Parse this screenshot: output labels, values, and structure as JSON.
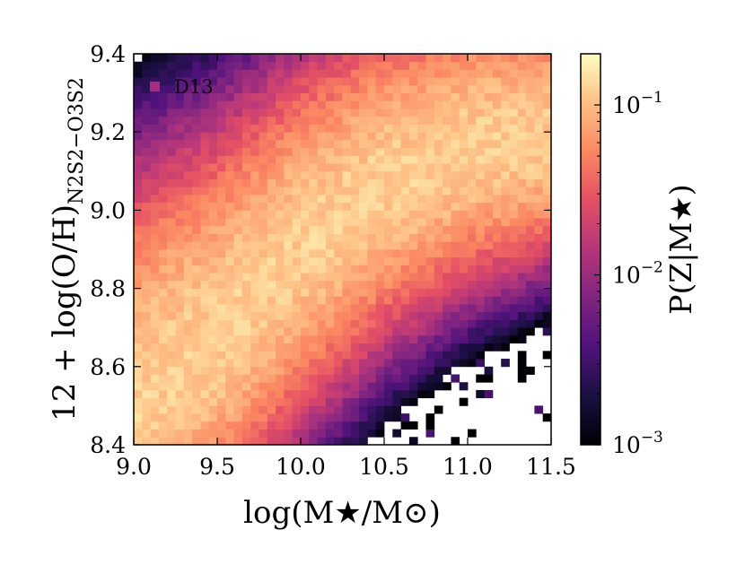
{
  "chart_data": {
    "type": "heatmap",
    "title": "",
    "panel_label": "D13",
    "xlabel": "log(M★/M⊙)",
    "ylabel": "12 + log(O/H)",
    "ylabel_subscript": "N2S2−O3S2",
    "colorbar_label": "P(Z|M★)",
    "x_range": [
      9.0,
      11.5
    ],
    "y_range": [
      8.4,
      9.4
    ],
    "x_ticks": [
      "9.0",
      "9.5",
      "10.0",
      "10.5",
      "11.0",
      "11.5"
    ],
    "y_ticks": [
      "8.4",
      "8.6",
      "8.8",
      "9.0",
      "9.2",
      "9.4"
    ],
    "colorbar": {
      "scale": "log",
      "range": [
        0.001,
        0.2
      ],
      "ticks": [
        {
          "value": 0.001,
          "base": "10",
          "exp": "−3"
        },
        {
          "value": 0.01,
          "base": "10",
          "exp": "−2"
        },
        {
          "value": 0.1,
          "base": "10",
          "exp": "−1"
        }
      ],
      "colormap": "magma"
    },
    "grid": false,
    "ridge_description": {
      "ridge_points": [
        [
          9.0,
          8.52
        ],
        [
          9.5,
          8.7
        ],
        [
          10.0,
          8.92
        ],
        [
          10.5,
          9.08
        ],
        [
          11.0,
          9.17
        ],
        [
          11.5,
          9.2
        ]
      ]
    }
  }
}
